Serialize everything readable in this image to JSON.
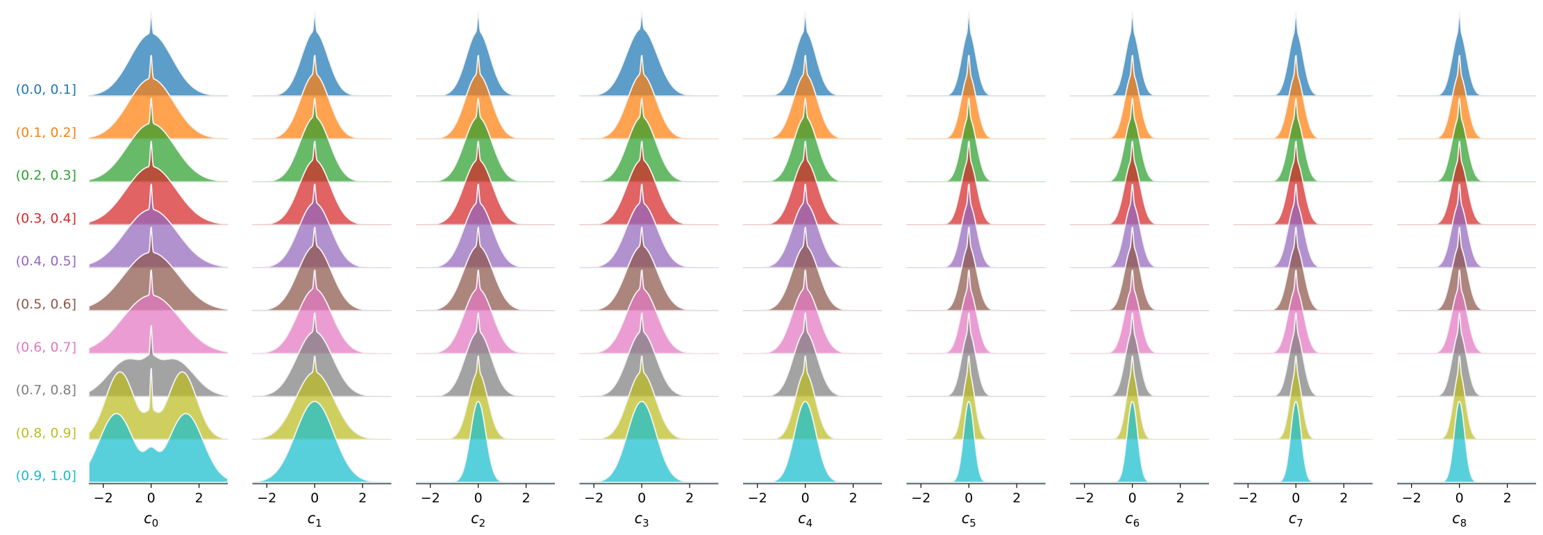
{
  "chart_data": {
    "type": "ridgeline",
    "row_labels": [
      "(0.0, 0.1]",
      "(0.1, 0.2]",
      "(0.2, 0.3]",
      "(0.3, 0.4]",
      "(0.4, 0.5]",
      "(0.5, 0.6]",
      "(0.6, 0.7]",
      "(0.7, 0.8]",
      "(0.8, 0.9]",
      "(0.9, 1.0]"
    ],
    "row_colors": [
      "#1f77b4",
      "#ff7f0e",
      "#2ca02c",
      "#d62728",
      "#9467bd",
      "#8c564b",
      "#e377c2",
      "#7f7f7f",
      "#bcbd22",
      "#17becf"
    ],
    "xlim": [
      -2.6,
      3.2
    ],
    "xticks": [
      -2,
      0,
      2
    ],
    "xtick_labels": [
      "−2",
      "0",
      "2"
    ],
    "panels": [
      {
        "xlabel": "c",
        "subscript": "0",
        "sigma": [
          0.88,
          0.95,
          1.0,
          1.05,
          1.1,
          1.15,
          1.2,
          1.0,
          0.75,
          0.9
        ],
        "bimodal": [
          0,
          0,
          0,
          0,
          0,
          0,
          0,
          1.0,
          1.3,
          1.45
        ],
        "spike": [
          0.35,
          0.4,
          0.45,
          0.45,
          0.45,
          0.45,
          0.45,
          0.4,
          0.3,
          0
        ]
      },
      {
        "xlabel": "c",
        "subscript": "1",
        "sigma": [
          0.55,
          0.6,
          0.62,
          0.65,
          0.68,
          0.7,
          0.72,
          0.75,
          0.8,
          0.8
        ],
        "bimodal": [
          0,
          0,
          0,
          0,
          0,
          0,
          0,
          0,
          0,
          0
        ],
        "spike": [
          0.3,
          0.3,
          0.3,
          0.3,
          0.3,
          0.3,
          0.3,
          0.3,
          0.25,
          0
        ]
      },
      {
        "xlabel": "c",
        "subscript": "2",
        "sigma": [
          0.5,
          0.55,
          0.58,
          0.6,
          0.6,
          0.62,
          0.6,
          0.55,
          0.4,
          0.32
        ],
        "bimodal": [
          0,
          0,
          0,
          0,
          0,
          0,
          0,
          0,
          0,
          0
        ],
        "spike": [
          0.3,
          0.3,
          0.3,
          0.3,
          0.3,
          0.3,
          0.3,
          0.3,
          0.25,
          0
        ]
      },
      {
        "xlabel": "c",
        "subscript": "3",
        "sigma": [
          0.65,
          0.6,
          0.6,
          0.62,
          0.65,
          0.65,
          0.65,
          0.6,
          0.58,
          0.6
        ],
        "bimodal": [
          0,
          0,
          0,
          0,
          0,
          0,
          0,
          0,
          0,
          0
        ],
        "spike": [
          0.25,
          0.3,
          0.3,
          0.3,
          0.3,
          0.3,
          0.3,
          0.3,
          0.25,
          0
        ]
      },
      {
        "xlabel": "c",
        "subscript": "4",
        "sigma": [
          0.45,
          0.5,
          0.5,
          0.52,
          0.55,
          0.55,
          0.55,
          0.5,
          0.42,
          0.45
        ],
        "bimodal": [
          0,
          0,
          0,
          0,
          0,
          0,
          0,
          0,
          0,
          0
        ],
        "spike": [
          0.3,
          0.3,
          0.3,
          0.3,
          0.3,
          0.3,
          0.3,
          0.3,
          0.25,
          0
        ]
      },
      {
        "xlabel": "c",
        "subscript": "5",
        "sigma": [
          0.3,
          0.32,
          0.32,
          0.33,
          0.33,
          0.33,
          0.33,
          0.3,
          0.25,
          0.22
        ],
        "bimodal": [
          0,
          0,
          0,
          0,
          0,
          0,
          0,
          0,
          0,
          0
        ],
        "spike": [
          0.3,
          0.3,
          0.3,
          0.3,
          0.3,
          0.3,
          0.3,
          0.3,
          0.25,
          0
        ]
      },
      {
        "xlabel": "c",
        "subscript": "6",
        "sigma": [
          0.3,
          0.32,
          0.32,
          0.33,
          0.33,
          0.33,
          0.33,
          0.3,
          0.25,
          0.22
        ],
        "bimodal": [
          0,
          0,
          0,
          0,
          0,
          0,
          0,
          0,
          0,
          0
        ],
        "spike": [
          0.3,
          0.3,
          0.3,
          0.3,
          0.3,
          0.3,
          0.3,
          0.3,
          0.25,
          0
        ]
      },
      {
        "xlabel": "c",
        "subscript": "7",
        "sigma": [
          0.3,
          0.32,
          0.32,
          0.33,
          0.33,
          0.33,
          0.33,
          0.3,
          0.25,
          0.22
        ],
        "bimodal": [
          0,
          0,
          0,
          0,
          0,
          0,
          0,
          0,
          0,
          0
        ],
        "spike": [
          0.3,
          0.3,
          0.3,
          0.3,
          0.3,
          0.3,
          0.3,
          0.3,
          0.25,
          0
        ]
      },
      {
        "xlabel": "c",
        "subscript": "8",
        "sigma": [
          0.3,
          0.32,
          0.32,
          0.33,
          0.33,
          0.33,
          0.33,
          0.3,
          0.25,
          0.22
        ],
        "bimodal": [
          0,
          0,
          0,
          0,
          0,
          0,
          0,
          0,
          0,
          0
        ],
        "spike": [
          0.3,
          0.3,
          0.3,
          0.3,
          0.3,
          0.3,
          0.3,
          0.3,
          0.25,
          0
        ]
      }
    ]
  }
}
